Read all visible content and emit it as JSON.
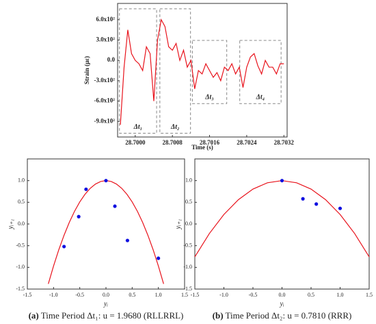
{
  "chart_data": [
    {
      "type": "line",
      "xlabel": "Time (s)",
      "ylabel": "Strain (με)",
      "color": "#e8121b",
      "xlim": [
        28.69962,
        28.70327
      ],
      "ylim": [
        -1130,
        840
      ],
      "xticks": [
        {
          "value": 28.7,
          "label": "28.7000"
        },
        {
          "value": 28.7008,
          "label": "28.7008"
        },
        {
          "value": 28.7016,
          "label": "28.7016"
        },
        {
          "value": 28.7024,
          "label": "28.7024"
        },
        {
          "value": 28.7032,
          "label": "28.7032"
        }
      ],
      "yticks": [
        {
          "value": 600,
          "label": "6.0x10²"
        },
        {
          "value": 300,
          "label": "3.0x10²"
        },
        {
          "value": 0,
          "label": "0.0"
        },
        {
          "value": -300,
          "label": "-3.0x10²"
        },
        {
          "value": -600,
          "label": "-6.0x10²"
        },
        {
          "value": -900,
          "label": "-9.0x10²"
        }
      ],
      "x": [
        28.69968,
        28.69976,
        28.69984,
        28.69992,
        28.7,
        28.70008,
        28.70016,
        28.70024,
        28.70032,
        28.7004,
        28.70048,
        28.70056,
        28.70064,
        28.70072,
        28.7008,
        28.70088,
        28.70096,
        28.70104,
        28.70112,
        28.7012,
        28.70128,
        28.70136,
        28.70144,
        28.70152,
        28.7016,
        28.70168,
        28.70176,
        28.70184,
        28.70192,
        28.702,
        28.70208,
        28.70216,
        28.70224,
        28.70232,
        28.7024,
        28.70248,
        28.70256,
        28.70264,
        28.70272,
        28.7028,
        28.70288,
        28.70296,
        28.70304,
        28.70312,
        28.7032
      ],
      "values": [
        -950,
        -100,
        450,
        100,
        0,
        -50,
        -150,
        200,
        100,
        -600,
        300,
        600,
        500,
        200,
        150,
        250,
        0,
        150,
        -100,
        0,
        -420,
        -150,
        -200,
        -50,
        -150,
        -250,
        -180,
        -300,
        -100,
        -150,
        -50,
        -200,
        -100,
        -400,
        -100,
        50,
        100,
        -80,
        -200,
        0,
        -100,
        -100,
        -200,
        -50,
        -50
      ],
      "annotations": [
        {
          "text": "Δt₁",
          "x": [
            28.69966,
            28.70046
          ],
          "y": [
            760,
            -1075
          ]
        },
        {
          "text": "Δt₂",
          "x": [
            28.70053,
            28.70119
          ],
          "y": [
            760,
            -1075
          ]
        },
        {
          "text": "Δt₃",
          "x": [
            28.70123,
            28.70197
          ],
          "y": [
            294,
            -638
          ]
        },
        {
          "text": "Δt₄",
          "x": [
            28.70225,
            28.70314
          ],
          "y": [
            294,
            -638
          ]
        }
      ]
    },
    {
      "type": "scatter",
      "xlabel": "yᵢ",
      "ylabel": "yᵢ₊₁",
      "caption_label": "(a)",
      "caption": " Time Period Δt₁: u = 1.9680 (RLLRRL)",
      "xlim": [
        -1.5,
        1.5
      ],
      "ylim": [
        -1.5,
        1.5
      ],
      "xticks": [
        {
          "value": -1.5,
          "label": "-1.5"
        },
        {
          "value": -1,
          "label": "-1.0"
        },
        {
          "value": -0.5,
          "label": "-0.5"
        },
        {
          "value": 0,
          "label": "0.0"
        },
        {
          "value": 0.5,
          "label": "0.5"
        },
        {
          "value": 1,
          "label": "1.0"
        },
        {
          "value": 1.5,
          "label": "1.5"
        }
      ],
      "yticks": [
        {
          "value": -1.5,
          "label": "-1.5"
        },
        {
          "value": -1,
          "label": "-1.0"
        },
        {
          "value": -0.5,
          "label": "-0.5"
        },
        {
          "value": 0,
          "label": "0.0"
        },
        {
          "value": 0.5,
          "label": "0.5"
        },
        {
          "value": 1,
          "label": "1.0"
        }
      ],
      "points": {
        "color": "#1010e0",
        "x": [
          -0.8,
          -0.52,
          -0.38,
          0,
          0.17,
          0.41,
          1
        ],
        "values": [
          -0.52,
          0.17,
          0.8,
          1,
          0.41,
          -0.38,
          -0.79
        ]
      },
      "curve": {
        "color": "#e8121b",
        "x": [
          -1.1,
          -1,
          -0.9,
          -0.8,
          -0.7,
          -0.6,
          -0.5,
          -0.4,
          -0.3,
          -0.2,
          -0.1,
          0,
          0.1,
          0.2,
          0.3,
          0.4,
          0.5,
          0.6,
          0.7,
          0.8,
          0.9,
          1,
          1.1
        ],
        "values": [
          -1.381,
          -0.968,
          -0.594,
          -0.26,
          0.036,
          0.292,
          0.508,
          0.685,
          0.823,
          0.921,
          0.98,
          1,
          0.98,
          0.921,
          0.823,
          0.685,
          0.508,
          0.292,
          0.036,
          -0.26,
          -0.594,
          -0.968,
          -1.381
        ]
      }
    },
    {
      "type": "scatter",
      "xlabel": "yᵢ",
      "ylabel": "yᵢ₊₁",
      "caption_label": "(b)",
      "caption": " Time Period Δt₂: u = 0.7810 (RRR)",
      "xlim": [
        -1.5,
        1.5
      ],
      "ylim": [
        -1.5,
        1.5
      ],
      "xticks": [
        {
          "value": -1.5,
          "label": "-1.5"
        },
        {
          "value": -1,
          "label": "-1.0"
        },
        {
          "value": -0.5,
          "label": "-0.5"
        },
        {
          "value": 0,
          "label": "0.0"
        },
        {
          "value": 0.5,
          "label": "0.5"
        },
        {
          "value": 1,
          "label": "1.0"
        },
        {
          "value": 1.5,
          "label": "1.5"
        }
      ],
      "yticks": [
        {
          "value": -1.5,
          "label": "-1.5"
        },
        {
          "value": -1,
          "label": "-1.0"
        },
        {
          "value": -0.5,
          "label": "-0.5"
        },
        {
          "value": 0,
          "label": "0.0"
        },
        {
          "value": 0.5,
          "label": "0.5"
        },
        {
          "value": 1,
          "label": "1.0"
        }
      ],
      "points": {
        "color": "#1010e0",
        "x": [
          0,
          0.36,
          0.59,
          1
        ],
        "values": [
          1,
          0.58,
          0.46,
          0.36
        ]
      },
      "curve": {
        "color": "#e8121b",
        "x": [
          -1.5,
          -1.25,
          -1,
          -0.75,
          -0.5,
          -0.25,
          0,
          0.25,
          0.5,
          0.75,
          1,
          1.25,
          1.5
        ],
        "values": [
          -0.757,
          -0.22,
          0.219,
          0.561,
          0.805,
          0.951,
          1,
          0.951,
          0.805,
          0.561,
          0.219,
          -0.22,
          -0.757
        ]
      }
    }
  ]
}
